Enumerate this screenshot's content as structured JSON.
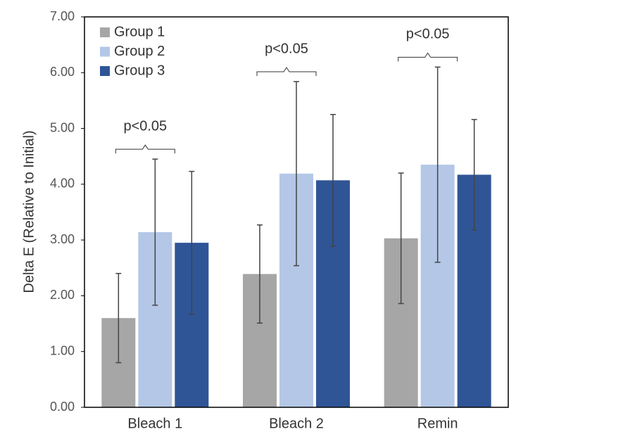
{
  "chart_data": {
    "type": "bar",
    "y_label": "Delta E (Relative to Initial)",
    "categories": [
      "Bleach 1",
      "Bleach 2",
      "Remin"
    ],
    "series": [
      {
        "name": "Group 1",
        "color": "#a6a6a6",
        "values": [
          1.6,
          2.39,
          3.03
        ],
        "errors": [
          0.8,
          0.88,
          1.17
        ]
      },
      {
        "name": "Group 2",
        "color": "#b4c7e7",
        "values": [
          3.14,
          4.19,
          4.35
        ],
        "errors": [
          1.31,
          1.65,
          1.75
        ]
      },
      {
        "name": "Group 3",
        "color": "#2f5597",
        "values": [
          2.95,
          4.07,
          4.17
        ],
        "errors": [
          1.28,
          1.18,
          0.99
        ]
      }
    ],
    "annotations": [
      {
        "text": "p<0.05",
        "category": 0
      },
      {
        "text": "p<0.05",
        "category": 1
      },
      {
        "text": "p<0.05",
        "category": 2
      }
    ],
    "ylim": [
      0,
      7
    ],
    "yticks": [
      {
        "value": 0,
        "label": "0.00"
      },
      {
        "value": 1,
        "label": "1.00"
      },
      {
        "value": 2,
        "label": "2.00"
      },
      {
        "value": 3,
        "label": "3.00"
      },
      {
        "value": 4,
        "label": "4.00"
      },
      {
        "value": 5,
        "label": "5.00"
      },
      {
        "value": 6,
        "label": "6.00"
      },
      {
        "value": 7,
        "label": "7.00"
      }
    ],
    "legend": "top-left"
  }
}
